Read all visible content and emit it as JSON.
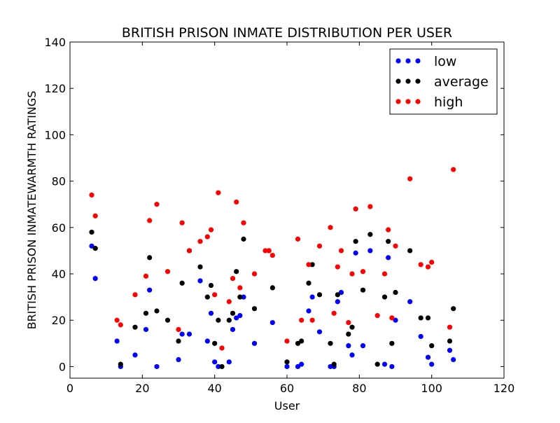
{
  "chart_data": {
    "type": "scatter",
    "title": "BRITISH PRISON INMATE DISTRIBUTION PER USER",
    "xlabel": "User",
    "ylabel": "BRITISH PRISON INMATEWARMTH RATINGS",
    "xlim": [
      0,
      120
    ],
    "ylim": [
      -5,
      140
    ],
    "xticks": [
      0,
      20,
      40,
      60,
      80,
      100,
      120
    ],
    "yticks": [
      0,
      20,
      40,
      60,
      80,
      100,
      120,
      140
    ],
    "grid": false,
    "legend_position": "top-right",
    "series": [
      {
        "name": "low",
        "color": "#0000ff",
        "points": [
          [
            6,
            52
          ],
          [
            7,
            38
          ],
          [
            13,
            11
          ],
          [
            14,
            0
          ],
          [
            18,
            5
          ],
          [
            21,
            16
          ],
          [
            22,
            33
          ],
          [
            24,
            0
          ],
          [
            30,
            3
          ],
          [
            31,
            14
          ],
          [
            33,
            14
          ],
          [
            36,
            37
          ],
          [
            38,
            11
          ],
          [
            39,
            23
          ],
          [
            40,
            2
          ],
          [
            41,
            0
          ],
          [
            44,
            2
          ],
          [
            45,
            16
          ],
          [
            46,
            21
          ],
          [
            47,
            22
          ],
          [
            48,
            30
          ],
          [
            51,
            10
          ],
          [
            56,
            19
          ],
          [
            60,
            0
          ],
          [
            63,
            0
          ],
          [
            64,
            1
          ],
          [
            66,
            24
          ],
          [
            67,
            30
          ],
          [
            69,
            15
          ],
          [
            72,
            0
          ],
          [
            73,
            0
          ],
          [
            74,
            28
          ],
          [
            75,
            32
          ],
          [
            77,
            9
          ],
          [
            78,
            5
          ],
          [
            79,
            49
          ],
          [
            81,
            9
          ],
          [
            83,
            50
          ],
          [
            87,
            1
          ],
          [
            88,
            47
          ],
          [
            89,
            0
          ],
          [
            90,
            20
          ],
          [
            94,
            28
          ],
          [
            97,
            13
          ],
          [
            99,
            4
          ],
          [
            100,
            1
          ],
          [
            105,
            7
          ],
          [
            106,
            3
          ]
        ]
      },
      {
        "name": "average",
        "color": "#000000",
        "points": [
          [
            6,
            58
          ],
          [
            7,
            51
          ],
          [
            14,
            1
          ],
          [
            18,
            17
          ],
          [
            21,
            23
          ],
          [
            22,
            47
          ],
          [
            24,
            24
          ],
          [
            27,
            20
          ],
          [
            30,
            11
          ],
          [
            31,
            36
          ],
          [
            33,
            50
          ],
          [
            36,
            43
          ],
          [
            38,
            30
          ],
          [
            39,
            35
          ],
          [
            40,
            10
          ],
          [
            41,
            20
          ],
          [
            42,
            0
          ],
          [
            44,
            20
          ],
          [
            45,
            23
          ],
          [
            46,
            41
          ],
          [
            47,
            30
          ],
          [
            48,
            55
          ],
          [
            51,
            25
          ],
          [
            55,
            50
          ],
          [
            56,
            34
          ],
          [
            60,
            2
          ],
          [
            63,
            10
          ],
          [
            64,
            11
          ],
          [
            66,
            36
          ],
          [
            67,
            44
          ],
          [
            69,
            31
          ],
          [
            72,
            10
          ],
          [
            73,
            1
          ],
          [
            74,
            31
          ],
          [
            77,
            14
          ],
          [
            78,
            17
          ],
          [
            79,
            54
          ],
          [
            81,
            33
          ],
          [
            83,
            57
          ],
          [
            85,
            1
          ],
          [
            87,
            30
          ],
          [
            88,
            54
          ],
          [
            89,
            10
          ],
          [
            90,
            32
          ],
          [
            94,
            50
          ],
          [
            97,
            21
          ],
          [
            99,
            21
          ],
          [
            100,
            9
          ],
          [
            105,
            11
          ],
          [
            106,
            25
          ]
        ]
      },
      {
        "name": "high",
        "color": "#ff0000",
        "points": [
          [
            6,
            74
          ],
          [
            7,
            65
          ],
          [
            13,
            20
          ],
          [
            14,
            18
          ],
          [
            18,
            31
          ],
          [
            21,
            39
          ],
          [
            22,
            63
          ],
          [
            24,
            70
          ],
          [
            27,
            41
          ],
          [
            30,
            16
          ],
          [
            31,
            62
          ],
          [
            33,
            50
          ],
          [
            36,
            54
          ],
          [
            38,
            56
          ],
          [
            39,
            59
          ],
          [
            40,
            31
          ],
          [
            41,
            75
          ],
          [
            42,
            8
          ],
          [
            44,
            28
          ],
          [
            45,
            38
          ],
          [
            46,
            71
          ],
          [
            47,
            34
          ],
          [
            48,
            62
          ],
          [
            51,
            40
          ],
          [
            54,
            50
          ],
          [
            55,
            50
          ],
          [
            56,
            48
          ],
          [
            60,
            11
          ],
          [
            63,
            55
          ],
          [
            64,
            20
          ],
          [
            66,
            44
          ],
          [
            67,
            20
          ],
          [
            69,
            52
          ],
          [
            72,
            60
          ],
          [
            73,
            23
          ],
          [
            74,
            43
          ],
          [
            75,
            50
          ],
          [
            77,
            19
          ],
          [
            78,
            40
          ],
          [
            79,
            68
          ],
          [
            81,
            41
          ],
          [
            83,
            69
          ],
          [
            85,
            22
          ],
          [
            87,
            40
          ],
          [
            88,
            59
          ],
          [
            89,
            21
          ],
          [
            90,
            52
          ],
          [
            94,
            81
          ],
          [
            97,
            44
          ],
          [
            99,
            43
          ],
          [
            100,
            45
          ],
          [
            105,
            17
          ],
          [
            106,
            85
          ]
        ]
      }
    ]
  }
}
